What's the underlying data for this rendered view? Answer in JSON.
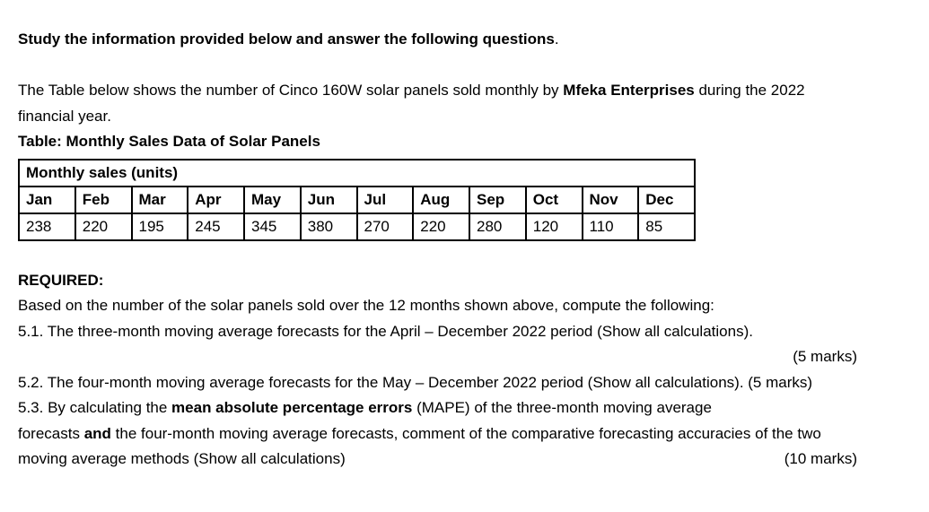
{
  "document": {
    "heading": {
      "bold": "Study the information provided below and answer the following questions",
      "suffix": "."
    },
    "intro": {
      "line1_before": "The Table below shows the number of Cinco 160W solar panels sold monthly by ",
      "company": "Mfeka Enterprises",
      "line1_after": " during the 2022",
      "line2": "financial year."
    },
    "table_caption": "Table: Monthly Sales Data of Solar Panels",
    "table": {
      "title": "Monthly sales (units)",
      "months": [
        "Jan",
        "Feb",
        "Mar",
        "Apr",
        "May",
        "Jun",
        "Jul",
        "Aug",
        "Sep",
        "Oct",
        "Nov",
        "Dec"
      ],
      "values": [
        "238",
        "220",
        "195",
        "245",
        "345",
        "380",
        "270",
        "220",
        "280",
        "120",
        "110",
        "85"
      ]
    },
    "required": {
      "label": "REQUIRED:",
      "intro": "Based on the number of the solar panels sold over the 12 months shown above, compute the following:"
    },
    "q51": {
      "text": "5.1. The three-month moving average forecasts for the April – December 2022 period (Show all calculations).",
      "marks": "(5 marks)"
    },
    "q52": {
      "text": "5.2. The four-month moving average forecasts for the May – December 2022 period (Show all calculations). ",
      "marks": "(5 marks)"
    },
    "q53": {
      "line1_before": "5.3. By calculating the ",
      "line1_bold": "mean absolute percentage errors",
      "line1_after": " (MAPE) of the three-month moving average",
      "line2_before": "forecasts ",
      "line2_bold": "and",
      "line2_after": " the four-month moving average forecasts, comment of the comparative forecasting accuracies of the two",
      "line3": "moving average methods (Show all calculations)",
      "marks": "(10 marks)"
    }
  }
}
